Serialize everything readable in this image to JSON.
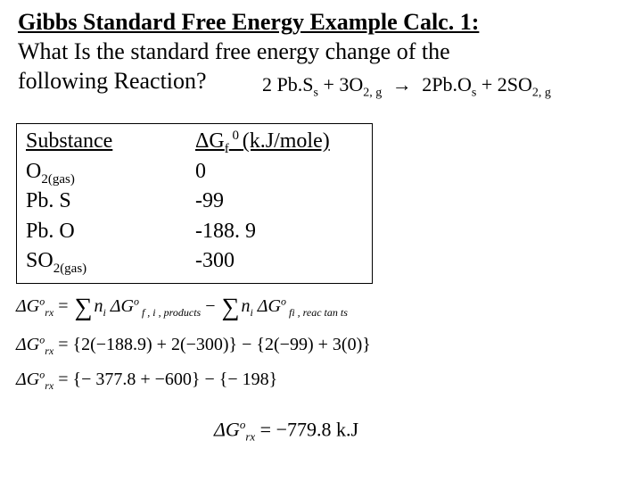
{
  "title": "Gibbs Standard Free Energy Example Calc. 1:",
  "question_l1": "What Is the standard free energy change of the",
  "question_l2": "following Reaction?",
  "reaction": {
    "r1_coef": "2",
    "r1": "Pb.S",
    "r1_sub": "s",
    "plus1": "+",
    "r2_coef": "3",
    "r2": "O",
    "r2_sub": "2, g",
    "arrow": "→",
    "p1_coef": "2",
    "p1": "Pb.O",
    "p1_sub": "s",
    "plus2": "+",
    "p2_coef": "2",
    "p2": "SO",
    "p2_sub": "2, g"
  },
  "table": {
    "header_col1": "Substance",
    "header_col2_a": "ΔG",
    "header_col2_sub": "f",
    "header_col2_sup": " 0 ",
    "header_col2_b": "(k.J/mole)",
    "rows": [
      {
        "name_a": "O",
        "name_sub": "2(gas)",
        "val": "0"
      },
      {
        "name_a": "Pb. S",
        "name_sub": "",
        "val": "-99"
      },
      {
        "name_a": "Pb. O",
        "name_sub": "",
        "val": "-188. 9"
      },
      {
        "name_a": "SO",
        "name_sub": "2(gas)",
        "val": "-300"
      }
    ]
  },
  "eq1": {
    "lhs": "ΔG",
    "sub": "rx",
    "sup": "o",
    "eq": " = ",
    "sum1": "∑",
    "t1a": "n",
    "t1a_sub": "i",
    "t1b": " ΔG",
    "t1b_sup": "o",
    "t1c_sub": " f , i , products",
    "minus": " − ",
    "sum2": "∑",
    "t2a": "n",
    "t2a_sub": "i",
    "t2b": " ΔG",
    "t2b_sup": "o",
    "t2c_sub": " fi , reac tan ts"
  },
  "eq2": {
    "lhs": "ΔG",
    "sub": "rx",
    "sup": "o",
    "text": " = {2(−188.9) + 2(−300)} − {2(−99) + 3(0)}"
  },
  "eq3": {
    "lhs": "ΔG",
    "sub": "rx",
    "sup": "o",
    "text": " = {− 377.8 + −600} − {− 198}"
  },
  "eq4": {
    "lhs": "ΔG",
    "sub": "rx",
    "sup": "o",
    "text": " = −779.8 k.J"
  }
}
